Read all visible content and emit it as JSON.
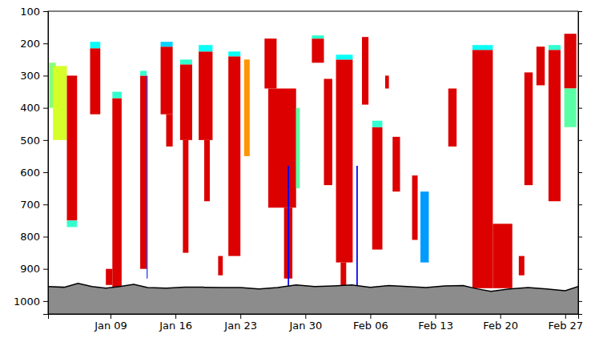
{
  "chart_data": {
    "type": "time_height",
    "xlim": [
      2.27,
      59.4
    ],
    "xticks": [
      {
        "value": 9,
        "label": "Jan 09"
      },
      {
        "value": 16,
        "label": "Jan 16"
      },
      {
        "value": 23,
        "label": "Jan 23"
      },
      {
        "value": 30,
        "label": "Jan 30"
      },
      {
        "value": 37,
        "label": "Feb 06"
      },
      {
        "value": 44,
        "label": "Feb 13"
      },
      {
        "value": 51,
        "label": "Feb 20"
      },
      {
        "value": 58,
        "label": "Feb 27"
      }
    ],
    "ylim": [
      100,
      1040
    ],
    "yticks": [
      100,
      200,
      300,
      400,
      500,
      600,
      700,
      800,
      900,
      1000
    ],
    "clim": [
      0,
      1
    ],
    "cells": [
      {
        "x0": 2.4,
        "x1": 3.1,
        "y0": 260,
        "y1": 400,
        "value": 0.5
      },
      {
        "x0": 2.8,
        "x1": 4.3,
        "y0": 270,
        "y1": 500,
        "value": 0.6
      },
      {
        "x0": 4.3,
        "x1": 5.4,
        "y0": 300,
        "y1": 750,
        "value": 0.92
      },
      {
        "x0": 4.3,
        "x1": 5.4,
        "y0": 750,
        "y1": 770,
        "value": 0.4
      },
      {
        "x0": 6.8,
        "x1": 7.9,
        "y0": 215,
        "y1": 420,
        "value": 0.92
      },
      {
        "x0": 6.8,
        "x1": 7.9,
        "y0": 195,
        "y1": 215,
        "value": 0.35
      },
      {
        "x0": 9.2,
        "x1": 10.2,
        "y0": 370,
        "y1": 960,
        "value": 0.92
      },
      {
        "x0": 9.2,
        "x1": 10.2,
        "y0": 350,
        "y1": 370,
        "value": 0.4
      },
      {
        "x0": 8.5,
        "x1": 9.2,
        "y0": 900,
        "y1": 950,
        "value": 0.92
      },
      {
        "x0": 12.2,
        "x1": 12.9,
        "y0": 300,
        "y1": 900,
        "value": 0.92
      },
      {
        "x0": 12.2,
        "x1": 12.9,
        "y0": 285,
        "y1": 300,
        "value": 0.4
      },
      {
        "x0": 12.9,
        "x1": 13.0,
        "y0": 300,
        "y1": 930,
        "value": 0.15
      },
      {
        "x0": 14.4,
        "x1": 15.7,
        "y0": 210,
        "y1": 420,
        "value": 0.92
      },
      {
        "x0": 15.0,
        "x1": 15.7,
        "y0": 420,
        "y1": 520,
        "value": 0.92
      },
      {
        "x0": 14.4,
        "x1": 15.7,
        "y0": 195,
        "y1": 210,
        "value": 0.3
      },
      {
        "x0": 16.5,
        "x1": 17.8,
        "y0": 265,
        "y1": 500,
        "value": 0.92
      },
      {
        "x0": 16.8,
        "x1": 17.4,
        "y0": 500,
        "y1": 850,
        "value": 0.92
      },
      {
        "x0": 16.5,
        "x1": 17.8,
        "y0": 250,
        "y1": 265,
        "value": 0.4
      },
      {
        "x0": 18.5,
        "x1": 20.0,
        "y0": 225,
        "y1": 500,
        "value": 0.92
      },
      {
        "x0": 19.1,
        "x1": 19.7,
        "y0": 500,
        "y1": 690,
        "value": 0.92
      },
      {
        "x0": 18.5,
        "x1": 20.0,
        "y0": 205,
        "y1": 225,
        "value": 0.35
      },
      {
        "x0": 20.6,
        "x1": 21.1,
        "y0": 860,
        "y1": 920,
        "value": 0.92
      },
      {
        "x0": 21.7,
        "x1": 23.0,
        "y0": 240,
        "y1": 860,
        "value": 0.92
      },
      {
        "x0": 21.7,
        "x1": 23.0,
        "y0": 225,
        "y1": 240,
        "value": 0.35
      },
      {
        "x0": 23.4,
        "x1": 24.0,
        "y0": 250,
        "y1": 550,
        "value": 0.75
      },
      {
        "x0": 25.6,
        "x1": 26.9,
        "y0": 185,
        "y1": 340,
        "value": 0.92
      },
      {
        "x0": 26.0,
        "x1": 29.0,
        "y0": 340,
        "y1": 710,
        "value": 0.92
      },
      {
        "x0": 27.7,
        "x1": 28.6,
        "y0": 710,
        "y1": 930,
        "value": 0.92
      },
      {
        "x0": 28.1,
        "x1": 28.25,
        "y0": 580,
        "y1": 960,
        "value": 0.1
      },
      {
        "x0": 29.0,
        "x1": 29.4,
        "y0": 400,
        "y1": 650,
        "value": 0.45
      },
      {
        "x0": 30.7,
        "x1": 32.0,
        "y0": 185,
        "y1": 260,
        "value": 0.92
      },
      {
        "x0": 30.7,
        "x1": 32.0,
        "y0": 175,
        "y1": 185,
        "value": 0.4
      },
      {
        "x0": 32.0,
        "x1": 32.9,
        "y0": 310,
        "y1": 640,
        "value": 0.92
      },
      {
        "x0": 33.3,
        "x1": 35.1,
        "y0": 250,
        "y1": 880,
        "value": 0.92
      },
      {
        "x0": 33.8,
        "x1": 34.4,
        "y0": 880,
        "y1": 960,
        "value": 0.92
      },
      {
        "x0": 33.3,
        "x1": 35.1,
        "y0": 235,
        "y1": 250,
        "value": 0.35
      },
      {
        "x0": 35.5,
        "x1": 35.65,
        "y0": 580,
        "y1": 960,
        "value": 0.1
      },
      {
        "x0": 36.1,
        "x1": 36.8,
        "y0": 180,
        "y1": 390,
        "value": 0.92
      },
      {
        "x0": 37.2,
        "x1": 38.3,
        "y0": 460,
        "y1": 840,
        "value": 0.92
      },
      {
        "x0": 37.2,
        "x1": 38.3,
        "y0": 440,
        "y1": 460,
        "value": 0.4
      },
      {
        "x0": 38.6,
        "x1": 39.0,
        "y0": 300,
        "y1": 340,
        "value": 0.92
      },
      {
        "x0": 39.4,
        "x1": 40.2,
        "y0": 490,
        "y1": 660,
        "value": 0.92
      },
      {
        "x0": 41.5,
        "x1": 42.1,
        "y0": 610,
        "y1": 810,
        "value": 0.92
      },
      {
        "x0": 42.4,
        "x1": 43.3,
        "y0": 660,
        "y1": 880,
        "value": 0.25
      },
      {
        "x0": 45.4,
        "x1": 46.3,
        "y0": 340,
        "y1": 520,
        "value": 0.92
      },
      {
        "x0": 48.0,
        "x1": 50.2,
        "y0": 220,
        "y1": 960,
        "value": 0.92
      },
      {
        "x0": 48.0,
        "x1": 50.2,
        "y0": 205,
        "y1": 220,
        "value": 0.35
      },
      {
        "x0": 50.2,
        "x1": 52.3,
        "y0": 760,
        "y1": 960,
        "value": 0.92
      },
      {
        "x0": 53.0,
        "x1": 53.6,
        "y0": 860,
        "y1": 920,
        "value": 0.92
      },
      {
        "x0": 53.6,
        "x1": 54.5,
        "y0": 290,
        "y1": 640,
        "value": 0.92
      },
      {
        "x0": 54.9,
        "x1": 55.8,
        "y0": 210,
        "y1": 330,
        "value": 0.92
      },
      {
        "x0": 56.2,
        "x1": 57.5,
        "y0": 220,
        "y1": 690,
        "value": 0.92
      },
      {
        "x0": 56.2,
        "x1": 57.5,
        "y0": 205,
        "y1": 220,
        "value": 0.4
      },
      {
        "x0": 57.9,
        "x1": 59.2,
        "y0": 170,
        "y1": 340,
        "value": 0.92
      },
      {
        "x0": 57.9,
        "x1": 59.2,
        "y0": 340,
        "y1": 460,
        "value": 0.45
      }
    ],
    "surface": {
      "x": [
        2.27,
        4,
        5.5,
        7,
        8.5,
        10,
        11.5,
        13,
        15,
        17,
        19,
        21,
        23,
        25,
        27,
        29,
        31,
        33,
        35,
        37,
        39,
        41,
        43,
        45,
        47,
        48.5,
        50,
        52,
        54,
        56,
        58,
        59.4
      ],
      "values": [
        955,
        957,
        945,
        955,
        960,
        955,
        948,
        958,
        960,
        957,
        957,
        958,
        958,
        962,
        958,
        950,
        955,
        953,
        950,
        957,
        952,
        955,
        958,
        953,
        952,
        962,
        970,
        962,
        958,
        962,
        968,
        955
      ]
    }
  }
}
